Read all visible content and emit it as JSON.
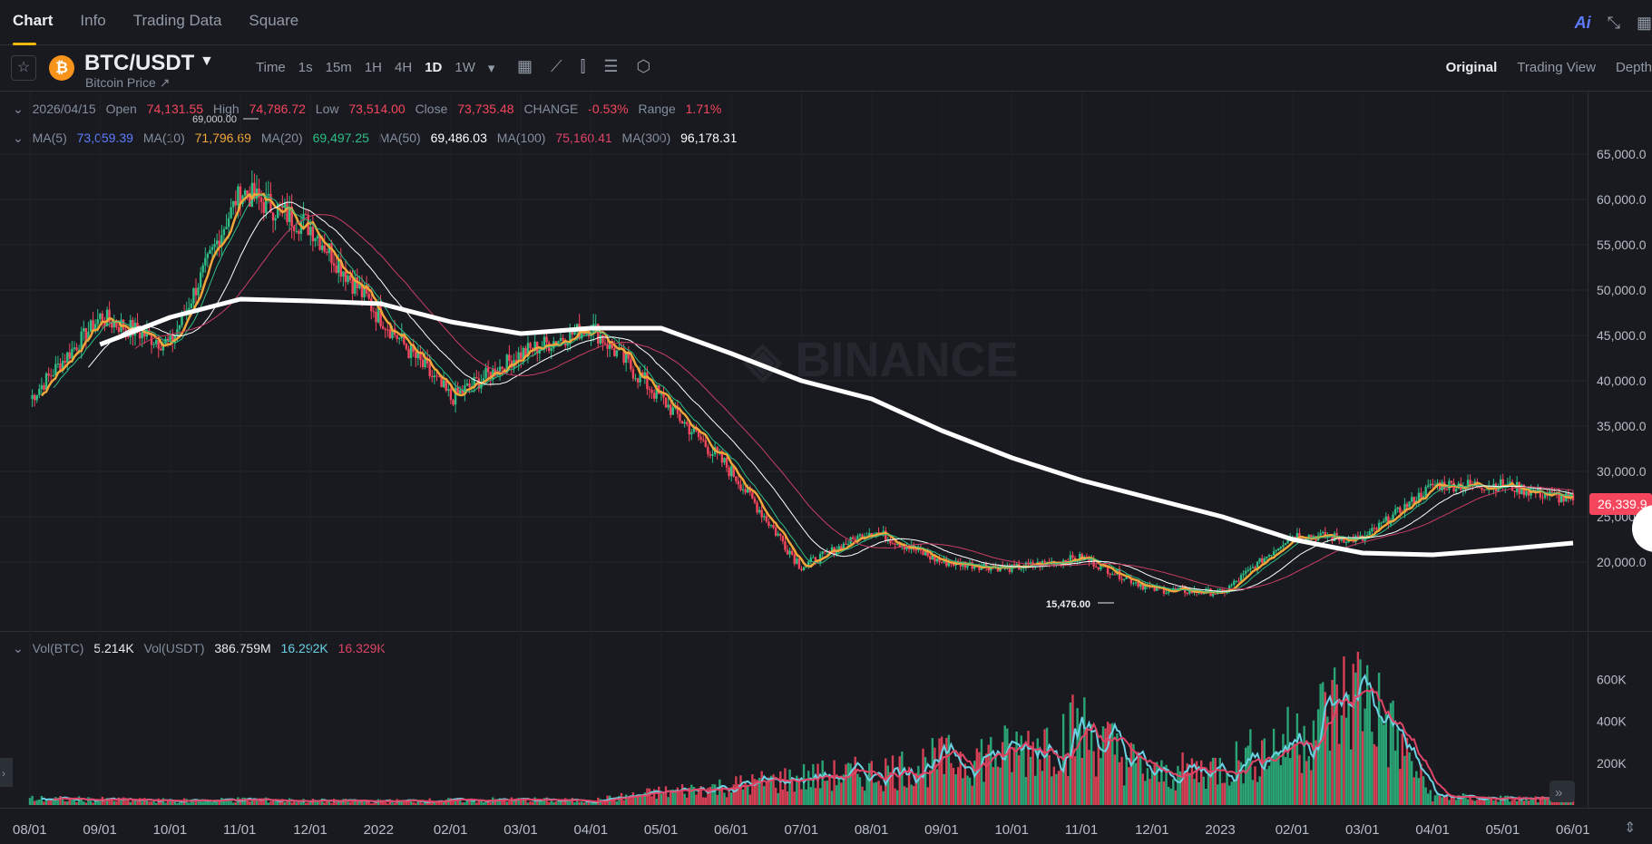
{
  "tabs": [
    "Chart",
    "Info",
    "Trading Data",
    "Square"
  ],
  "top_right": {
    "ai": "Ai",
    "collapse_icon": "⤡",
    "grid_icon": "▦"
  },
  "symbol": {
    "pair": "BTC/USDT",
    "subtitle": "Bitcoin Price ↗"
  },
  "intervals": [
    "Time",
    "1s",
    "15m",
    "1H",
    "4H",
    "1D",
    "1W"
  ],
  "active_interval": "1D",
  "views": [
    "Original",
    "Trading View",
    "Depth"
  ],
  "ohlc": {
    "date": "2026/04/15",
    "open_label": "Open",
    "open": "74,131.55",
    "high_label": "High",
    "high": "74,786.72",
    "low_label": "Low",
    "low": "73,514.00",
    "close_label": "Close",
    "close": "73,735.48",
    "change_label": "CHANGE",
    "change": "-0.53%",
    "range_label": "Range",
    "range": "1.71%"
  },
  "ma": [
    {
      "label": "MA(5)",
      "value": "73,059.39",
      "color": "#5e7cff"
    },
    {
      "label": "MA(10)",
      "value": "71,796.69",
      "color": "#f0a63a"
    },
    {
      "label": "MA(20)",
      "value": "69,497.25",
      "color": "#2ebd85"
    },
    {
      "label": "MA(50)",
      "value": "69,486.03",
      "color": "#ffffff"
    },
    {
      "label": "MA(100)",
      "value": "75,160.41",
      "color": "#e04466"
    },
    {
      "label": "MA(300)",
      "value": "96,178.31",
      "color": "#ffffff"
    }
  ],
  "volume": {
    "btc_label": "Vol(BTC)",
    "btc": "5.214K",
    "usdt_label": "Vol(USDT)",
    "usdt": "386.759M",
    "ma1": "16.292K",
    "ma2": "16.329K"
  },
  "current_price_tag": "26,339.9",
  "annotations": {
    "high": "69,000.00",
    "low": "15,476.00"
  },
  "colors": {
    "up": "#2ebd85",
    "down": "#f6465d",
    "ma_orange": "#f0a63a",
    "ma_green": "#2ebd85",
    "ma_red": "#c83e63",
    "vol_ma_blue": "#6ad1e3",
    "vol_ma_red": "#e04466"
  },
  "chart_data": [
    {
      "type": "line",
      "title": "BTC/USDT 1D",
      "x": [
        "08/01",
        "09/01",
        "10/01",
        "11/01",
        "12/01",
        "2022",
        "02/01",
        "03/01",
        "04/01",
        "05/01",
        "06/01",
        "07/01",
        "08/01",
        "09/01",
        "10/01",
        "11/01",
        "12/01",
        "2023",
        "02/01",
        "03/01",
        "04/01",
        "05/01",
        "06/01"
      ],
      "series": [
        {
          "values": [
            38000,
            47000,
            44000,
            61000,
            57000,
            47000,
            38000,
            43000,
            46000,
            38000,
            30000,
            19500,
            23500,
            20000,
            19300,
            20500,
            17000,
            16600,
            23000,
            22500,
            28500,
            28500,
            26800
          ]
        },
        {
          "name": "MA(300)",
          "values": [
            39000,
            44000,
            47000,
            49000,
            48800,
            48500,
            46500,
            45200,
            45800,
            45800,
            43000,
            40000,
            38000,
            34500,
            31500,
            29000,
            27000,
            25000,
            22500,
            21000,
            20800,
            21400,
            22100
          ]
        }
      ],
      "ylim": [
        13000,
        70000
      ],
      "yticks": [
        "65,000.0",
        "60,000.0",
        "55,000.0",
        "50,000.0",
        "45,000.0",
        "40,000.0",
        "35,000.0",
        "30,000.0",
        "25,000.0",
        "20,000.0"
      ],
      "grid": true
    },
    {
      "type": "bar",
      "x": [
        "08/01",
        "09/01",
        "10/01",
        "11/01",
        "12/01",
        "2022",
        "02/01",
        "03/01",
        "04/01",
        "05/01",
        "06/01",
        "07/01",
        "08/01",
        "09/01",
        "10/01",
        "11/01",
        "12/01",
        "2023",
        "02/01",
        "03/01",
        "04/01",
        "05/01",
        "06/01"
      ],
      "values": [
        30000,
        25000,
        20000,
        25000,
        20000,
        18000,
        22000,
        25000,
        20000,
        60000,
        90000,
        130000,
        150000,
        210000,
        250000,
        360000,
        140000,
        180000,
        310000,
        560000,
        40000,
        30000,
        25000
      ],
      "ylim": [
        0,
        750000
      ],
      "yticks": [
        "600K",
        "400K",
        "200K"
      ]
    }
  ]
}
